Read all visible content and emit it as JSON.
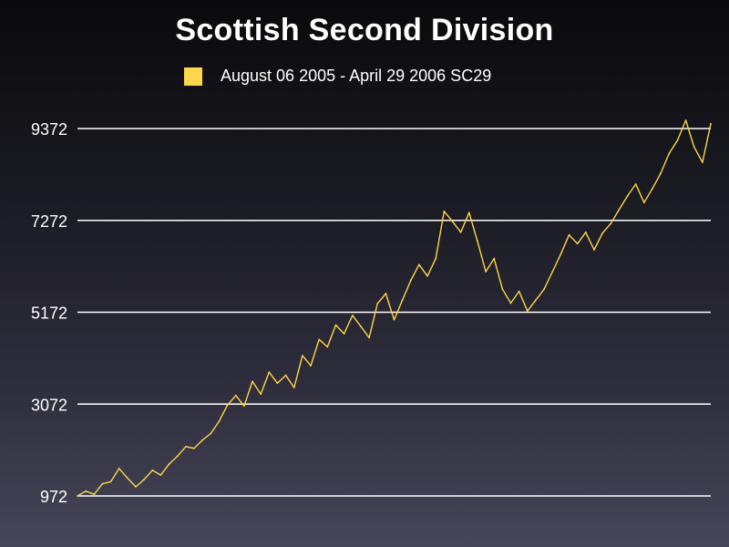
{
  "chart_data": {
    "type": "line",
    "title": "Scottish Second Division",
    "legend": "August 06 2005  - April 29 2006 SC29",
    "line_color": "#ffd54a",
    "ytick_labels": [
      "9372",
      "7272",
      "5172",
      "3072",
      "972"
    ],
    "yticks": [
      9372,
      7272,
      5172,
      3072,
      972
    ],
    "ylim": [
      972,
      9372
    ],
    "grid": true,
    "series": [
      {
        "values": [
          {
            "x": 0,
            "y": 972
          },
          {
            "x": 1,
            "y": 1080
          },
          {
            "x": 2,
            "y": 1010
          },
          {
            "x": 3,
            "y": 1250
          },
          {
            "x": 4,
            "y": 1300
          },
          {
            "x": 5,
            "y": 1600
          },
          {
            "x": 6,
            "y": 1380
          },
          {
            "x": 7,
            "y": 1180
          },
          {
            "x": 8,
            "y": 1350
          },
          {
            "x": 9,
            "y": 1560
          },
          {
            "x": 10,
            "y": 1450
          },
          {
            "x": 11,
            "y": 1700
          },
          {
            "x": 12,
            "y": 1880
          },
          {
            "x": 13,
            "y": 2100
          },
          {
            "x": 14,
            "y": 2060
          },
          {
            "x": 15,
            "y": 2250
          },
          {
            "x": 16,
            "y": 2400
          },
          {
            "x": 17,
            "y": 2680
          },
          {
            "x": 18,
            "y": 3050
          },
          {
            "x": 19,
            "y": 3270
          },
          {
            "x": 20,
            "y": 3030
          },
          {
            "x": 21,
            "y": 3590
          },
          {
            "x": 22,
            "y": 3300
          },
          {
            "x": 23,
            "y": 3800
          },
          {
            "x": 24,
            "y": 3550
          },
          {
            "x": 25,
            "y": 3730
          },
          {
            "x": 26,
            "y": 3450
          },
          {
            "x": 27,
            "y": 4180
          },
          {
            "x": 28,
            "y": 3950
          },
          {
            "x": 29,
            "y": 4550
          },
          {
            "x": 30,
            "y": 4380
          },
          {
            "x": 31,
            "y": 4880
          },
          {
            "x": 32,
            "y": 4680
          },
          {
            "x": 33,
            "y": 5100
          },
          {
            "x": 34,
            "y": 4850
          },
          {
            "x": 35,
            "y": 4590
          },
          {
            "x": 36,
            "y": 5370
          },
          {
            "x": 37,
            "y": 5600
          },
          {
            "x": 38,
            "y": 5000
          },
          {
            "x": 39,
            "y": 5450
          },
          {
            "x": 40,
            "y": 5900
          },
          {
            "x": 41,
            "y": 6260
          },
          {
            "x": 42,
            "y": 6000
          },
          {
            "x": 43,
            "y": 6400
          },
          {
            "x": 44,
            "y": 7480
          },
          {
            "x": 45,
            "y": 7250
          },
          {
            "x": 46,
            "y": 7000
          },
          {
            "x": 47,
            "y": 7450
          },
          {
            "x": 48,
            "y": 6800
          },
          {
            "x": 49,
            "y": 6100
          },
          {
            "x": 50,
            "y": 6400
          },
          {
            "x": 51,
            "y": 5700
          },
          {
            "x": 52,
            "y": 5380
          },
          {
            "x": 53,
            "y": 5650
          },
          {
            "x": 54,
            "y": 5200
          },
          {
            "x": 55,
            "y": 5450
          },
          {
            "x": 56,
            "y": 5700
          },
          {
            "x": 57,
            "y": 6100
          },
          {
            "x": 58,
            "y": 6500
          },
          {
            "x": 59,
            "y": 6940
          },
          {
            "x": 60,
            "y": 6740
          },
          {
            "x": 61,
            "y": 7000
          },
          {
            "x": 62,
            "y": 6600
          },
          {
            "x": 63,
            "y": 6980
          },
          {
            "x": 64,
            "y": 7200
          },
          {
            "x": 65,
            "y": 7520
          },
          {
            "x": 66,
            "y": 7830
          },
          {
            "x": 67,
            "y": 8100
          },
          {
            "x": 68,
            "y": 7680
          },
          {
            "x": 69,
            "y": 8000
          },
          {
            "x": 70,
            "y": 8350
          },
          {
            "x": 71,
            "y": 8800
          },
          {
            "x": 72,
            "y": 9100
          },
          {
            "x": 73,
            "y": 9560
          },
          {
            "x": 74,
            "y": 8950
          },
          {
            "x": 75,
            "y": 8600
          },
          {
            "x": 76,
            "y": 9480
          }
        ]
      }
    ]
  }
}
